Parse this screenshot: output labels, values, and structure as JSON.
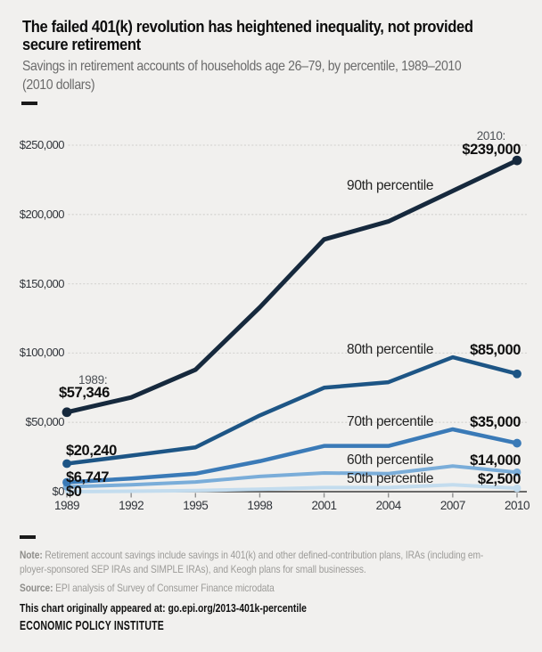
{
  "colors": {
    "background": "#f1f0ee",
    "accent_navy": "#16293d",
    "grid": "#d7d6d3",
    "axis": "#3c3c3c"
  },
  "header": {
    "title_line1": "The failed 401(k) revolution has heightened inequality, not provided",
    "title_line2": "secure retirement",
    "subtitle_line1": "Savings in retirement accounts of households age 26–79, by percentile, 1989–2010",
    "subtitle_line2": "(2010 dollars)"
  },
  "chart_data": {
    "type": "line",
    "x": [
      1989,
      1992,
      1995,
      1998,
      2001,
      2004,
      2007,
      2010
    ],
    "x_tick_labels": [
      "1989",
      "1992",
      "1995",
      "1998",
      "2001",
      "2004",
      "2007",
      "2010"
    ],
    "y_ticks": [
      {
        "value": 0,
        "label": "$0"
      },
      {
        "value": 50000,
        "label": "$50,000"
      },
      {
        "value": 100000,
        "label": "$100,000"
      },
      {
        "value": 150000,
        "label": "$150,000"
      },
      {
        "value": 200000,
        "label": "$200,000"
      },
      {
        "value": 250000,
        "label": "$250,000"
      }
    ],
    "ylim": [
      0,
      250000
    ],
    "grid": "horizontal-dotted",
    "legend": "inline-labels",
    "start_year_label": "1989:",
    "end_year_label": "2010:",
    "series": [
      {
        "name": "90th percentile",
        "color": "#16293d",
        "stroke_width": 5,
        "values": [
          57346,
          68000,
          88000,
          133000,
          182000,
          195000,
          217000,
          239000
        ],
        "label_1989": "$57,346",
        "label_2010": "$239,000"
      },
      {
        "name": "80th percentile",
        "color": "#1d5585",
        "stroke_width": 4.5,
        "values": [
          20240,
          26000,
          32000,
          55000,
          75000,
          79000,
          97000,
          85000
        ],
        "label_1989": "$20,240",
        "label_2010": "$85,000"
      },
      {
        "name": "70th percentile",
        "color": "#3a7ab7",
        "stroke_width": 4.5,
        "values": [
          6747,
          9500,
          13000,
          22000,
          33000,
          33000,
          45000,
          35000
        ],
        "label_1989": "$6,747",
        "label_2010": "$35,000"
      },
      {
        "name": "60th percentile",
        "color": "#7aadd9",
        "stroke_width": 4,
        "values": [
          3500,
          5000,
          7000,
          11000,
          13500,
          13000,
          18500,
          14000
        ],
        "label_1989": "",
        "label_2010": "$14,000"
      },
      {
        "name": "50th percentile",
        "color": "#c3dcee",
        "stroke_width": 4,
        "values": [
          0,
          300,
          800,
          1800,
          3000,
          3000,
          5000,
          2500
        ],
        "label_1989": "$0",
        "label_2010": "$2,500"
      }
    ]
  },
  "footer": {
    "note_label": "Note:",
    "note_line1": " Retirement account savings include savings in 401(k) and other defined-contribution plans, IRAs (including em-",
    "note_line2": "ployer-sponsored SEP IRAs and SIMPLE IRAs), and Keogh plans for small businesses.",
    "source_label": "Source:",
    "source_line": " EPI analysis of Survey of Consumer Finance microdata",
    "appeared_line": "This chart originally appeared at: go.epi.org/2013-401k-percentile",
    "org_name": "ECONOMIC POLICY INSTITUTE"
  }
}
